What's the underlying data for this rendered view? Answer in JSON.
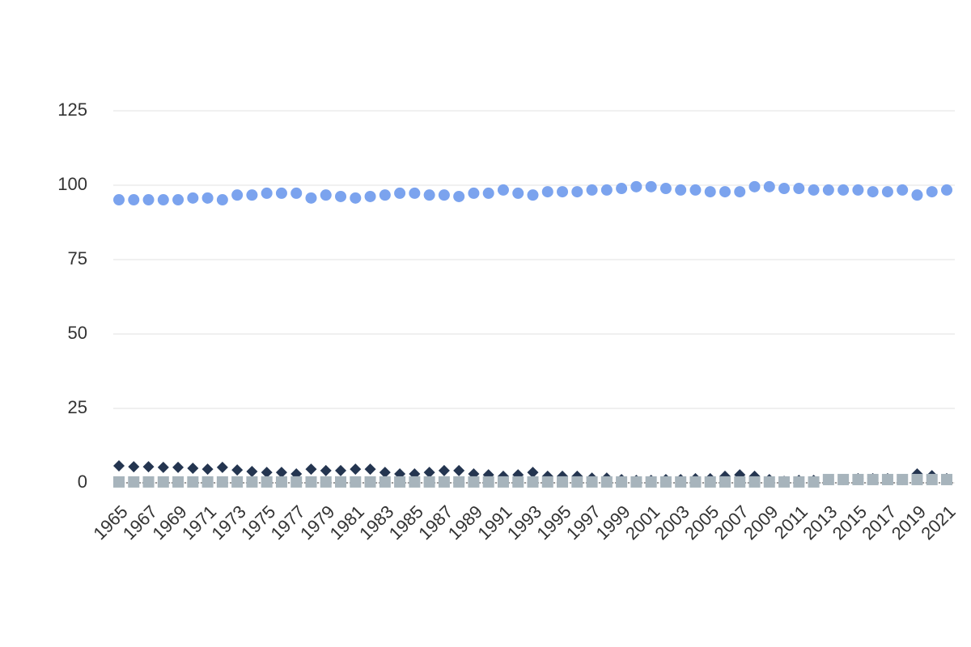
{
  "chart_data": {
    "type": "scatter",
    "categories": [
      "1965",
      null,
      "1967",
      null,
      "1969",
      null,
      "1971",
      null,
      "1973",
      null,
      "1975",
      null,
      "1977",
      null,
      "1979",
      null,
      "1981",
      null,
      "1983",
      null,
      "1985",
      null,
      "1987",
      null,
      "1989",
      null,
      "1991",
      null,
      "1993",
      null,
      "1995",
      null,
      "1997",
      null,
      "1999",
      null,
      "2001",
      null,
      "2003",
      null,
      "2005",
      null,
      "2007",
      null,
      "2009",
      null,
      "2011",
      null,
      "2013",
      null,
      "2015",
      null,
      "2017",
      null,
      "2019",
      null,
      "2021"
    ],
    "series": [
      {
        "color": "#7ba3ee",
        "marker": "circle",
        "values": [
          95.1,
          95.1,
          95.1,
          95.1,
          95.1,
          95.7,
          95.7,
          95.1,
          96.7,
          96.7,
          97.3,
          97.3,
          97.3,
          95.7,
          96.7,
          96.2,
          95.7,
          96.2,
          96.7,
          97.3,
          97.3,
          96.7,
          96.7,
          96.2,
          97.3,
          97.3,
          98.4,
          97.3,
          96.7,
          97.8,
          97.8,
          97.8,
          98.4,
          98.4,
          98.9,
          99.5,
          99.5,
          98.9,
          98.4,
          98.4,
          97.8,
          97.8,
          97.8,
          99.5,
          99.5,
          98.9,
          98.9,
          98.4,
          98.4,
          98.4,
          98.4,
          97.8,
          97.8,
          98.4,
          96.7,
          97.8,
          98.4
        ]
      },
      {
        "color": "#243550",
        "marker": "diamond",
        "values": [
          5.7,
          5.4,
          5.4,
          5.2,
          5.2,
          4.9,
          4.6,
          5.2,
          4.3,
          3.8,
          3.5,
          3.5,
          3.0,
          4.6,
          4.1,
          4.1,
          4.6,
          4.6,
          3.5,
          3.0,
          3.0,
          3.5,
          4.1,
          4.1,
          3.0,
          2.7,
          2.2,
          2.7,
          3.5,
          2.2,
          2.2,
          2.2,
          1.6,
          1.6,
          1.1,
          0.8,
          0.8,
          1.1,
          1.1,
          1.4,
          1.4,
          2.2,
          2.7,
          2.2,
          1.1,
          0.5,
          0.8,
          0.8,
          1.1,
          1.1,
          1.4,
          1.4,
          1.4,
          1.1,
          3.0,
          2.4,
          1.4
        ]
      },
      {
        "color": "#a7b4bc",
        "marker": "square",
        "values": [
          0.3,
          0.3,
          0.3,
          0.3,
          0.3,
          0.3,
          0.3,
          0.3,
          0.3,
          0.3,
          0.3,
          0.3,
          0.3,
          0.3,
          0.3,
          0.3,
          0.3,
          0.3,
          0.3,
          0.3,
          0.3,
          0.3,
          0.3,
          0.3,
          0.3,
          0.3,
          0.3,
          0.3,
          0.3,
          0.3,
          0.3,
          0.3,
          0.3,
          0.3,
          0.3,
          0.3,
          0.3,
          0.3,
          0.3,
          0.3,
          0.3,
          0.3,
          0.3,
          0.3,
          0.3,
          0.3,
          0.3,
          0.3,
          1.1,
          1.1,
          1.1,
          1.1,
          1.1,
          1.1,
          1.1,
          1.1,
          1.1
        ]
      }
    ],
    "ylim": [
      0,
      125
    ],
    "yticks": [
      0,
      25,
      50,
      75,
      100,
      125
    ],
    "grid": true
  }
}
